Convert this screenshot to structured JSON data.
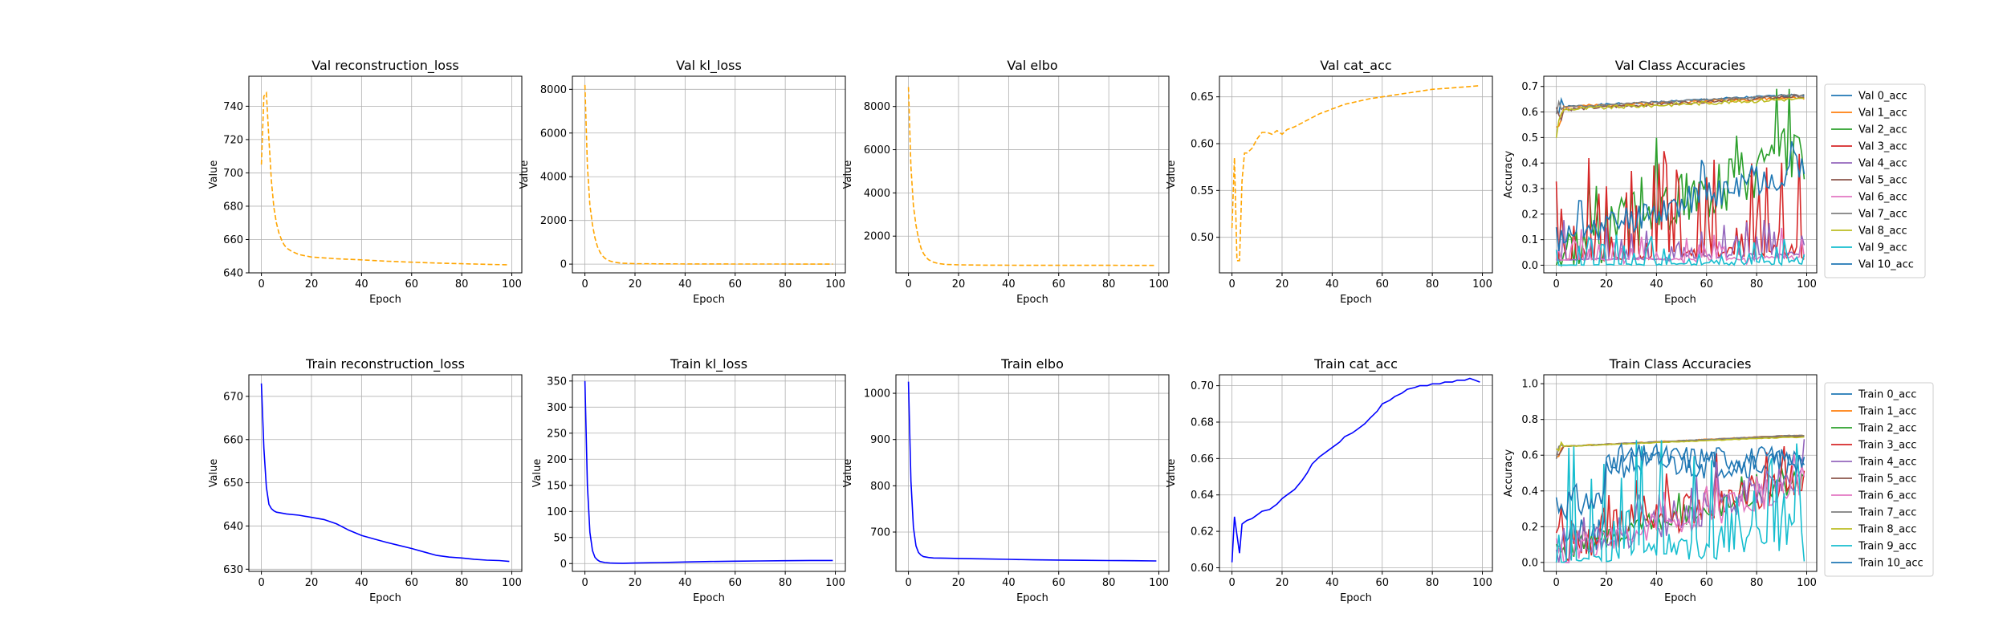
{
  "chart_data": [
    {
      "type": "line",
      "title": "Val reconstruction_loss",
      "xlabel": "Epoch",
      "ylabel": "Value",
      "xlim": [
        -5,
        104
      ],
      "ylim": [
        640,
        758
      ],
      "xticks": [
        0,
        20,
        40,
        60,
        80,
        100
      ],
      "yticks": [
        640,
        660,
        680,
        700,
        720,
        740
      ],
      "grid": true,
      "series": [
        {
          "color": "#ffa500",
          "dash": "dashed",
          "x": [
            0,
            1,
            2,
            3,
            4,
            5,
            6,
            7,
            8,
            9,
            10,
            12,
            15,
            20,
            30,
            40,
            50,
            60,
            70,
            80,
            90,
            99
          ],
          "y": [
            705,
            746,
            748,
            720,
            695,
            679,
            670,
            664,
            660,
            657,
            655,
            653,
            651,
            649.5,
            648.5,
            647.8,
            647,
            646.4,
            645.9,
            645.5,
            645.1,
            644.8
          ]
        }
      ]
    },
    {
      "type": "line",
      "title": "Val kl_loss",
      "xlabel": "Epoch",
      "ylabel": "Value",
      "xlim": [
        -5,
        104
      ],
      "ylim": [
        -400,
        8600
      ],
      "xticks": [
        0,
        20,
        40,
        60,
        80,
        100
      ],
      "yticks": [
        0,
        2000,
        4000,
        6000,
        8000
      ],
      "grid": true,
      "series": [
        {
          "color": "#ffa500",
          "dash": "dashed",
          "x": [
            0,
            1,
            2,
            3,
            4,
            5,
            6,
            7,
            8,
            10,
            12,
            15,
            20,
            30,
            40,
            60,
            80,
            99
          ],
          "y": [
            8200,
            4500,
            2700,
            1800,
            1200,
            800,
            550,
            380,
            260,
            140,
            80,
            40,
            20,
            10,
            6,
            4,
            3,
            2
          ]
        }
      ]
    },
    {
      "type": "line",
      "title": "Val elbo",
      "xlabel": "Epoch",
      "ylabel": "Value",
      "xlim": [
        -5,
        104
      ],
      "ylim": [
        300,
        9400
      ],
      "xticks": [
        0,
        20,
        40,
        60,
        80,
        100
      ],
      "yticks": [
        2000,
        4000,
        6000,
        8000
      ],
      "grid": true,
      "series": [
        {
          "color": "#ffa500",
          "dash": "dashed",
          "x": [
            0,
            1,
            2,
            3,
            4,
            5,
            6,
            7,
            8,
            10,
            12,
            15,
            20,
            30,
            40,
            60,
            80,
            99
          ],
          "y": [
            8900,
            5200,
            3400,
            2500,
            1900,
            1450,
            1200,
            1030,
            910,
            790,
            730,
            690,
            670,
            655,
            652,
            650,
            648,
            646
          ]
        }
      ]
    },
    {
      "type": "line",
      "title": "Val cat_acc",
      "xlabel": "Epoch",
      "ylabel": "Value",
      "xlim": [
        -5,
        104
      ],
      "ylim": [
        0.462,
        0.672
      ],
      "xticks": [
        0,
        20,
        40,
        60,
        80,
        100
      ],
      "yticks": [
        0.5,
        0.55,
        0.6,
        0.65
      ],
      "grid": true,
      "series": [
        {
          "color": "#ffa500",
          "dash": "dashed",
          "x": [
            0,
            1,
            2,
            3,
            4,
            5,
            6,
            8,
            10,
            12,
            14,
            16,
            18,
            20,
            22,
            25,
            30,
            35,
            40,
            45,
            50,
            55,
            60,
            65,
            70,
            75,
            80,
            85,
            90,
            95,
            99
          ],
          "y": [
            0.51,
            0.585,
            0.475,
            0.475,
            0.56,
            0.59,
            0.59,
            0.595,
            0.605,
            0.612,
            0.612,
            0.61,
            0.614,
            0.61,
            0.615,
            0.618,
            0.625,
            0.632,
            0.637,
            0.642,
            0.645,
            0.648,
            0.65,
            0.652,
            0.654,
            0.656,
            0.658,
            0.659,
            0.66,
            0.661,
            0.662
          ]
        }
      ]
    },
    {
      "type": "line",
      "title": "Val Class Accuracies",
      "xlabel": "Epoch",
      "ylabel": "Accuracy",
      "xlim": [
        -5,
        104
      ],
      "ylim": [
        -0.03,
        0.74
      ],
      "xticks": [
        0,
        20,
        40,
        60,
        80,
        100
      ],
      "yticks": [
        0,
        0.1,
        0.2,
        0.3,
        0.4,
        0.5,
        0.6,
        0.7
      ],
      "grid": true,
      "legend": "outside-right",
      "generated": true,
      "series": [
        {
          "name": "Val 0_acc",
          "color": "#1f77b4",
          "kind": "high",
          "base": 0.62,
          "start": 0.6,
          "end": 0.665,
          "amp": 0.01,
          "seed": 1
        },
        {
          "name": "Val 1_acc",
          "color": "#ff7f0e",
          "kind": "high",
          "base": 0.62,
          "start": 0.55,
          "end": 0.655,
          "amp": 0.012,
          "seed": 2
        },
        {
          "name": "Val 2_acc",
          "color": "#2ca02c",
          "kind": "mid",
          "base": 0.15,
          "start": 0.05,
          "end": 0.45,
          "amp": 0.12,
          "seed": 3
        },
        {
          "name": "Val 3_acc",
          "color": "#d62728",
          "kind": "spiky",
          "base": 0.03,
          "start": 0.02,
          "end": 0.1,
          "amp": 0.45,
          "seed": 4
        },
        {
          "name": "Val 4_acc",
          "color": "#9467bd",
          "kind": "spiky",
          "base": 0.03,
          "start": 0.02,
          "end": 0.06,
          "amp": 0.18,
          "seed": 5
        },
        {
          "name": "Val 5_acc",
          "color": "#8c564b",
          "kind": "high",
          "base": 0.61,
          "start": 0.6,
          "end": 0.66,
          "amp": 0.012,
          "seed": 6
        },
        {
          "name": "Val 6_acc",
          "color": "#e377c2",
          "kind": "spiky",
          "base": 0.02,
          "start": 0.02,
          "end": 0.04,
          "amp": 0.15,
          "seed": 7
        },
        {
          "name": "Val 7_acc",
          "color": "#7f7f7f",
          "kind": "high",
          "base": 0.62,
          "start": 0.6,
          "end": 0.665,
          "amp": 0.008,
          "seed": 8
        },
        {
          "name": "Val 8_acc",
          "color": "#bcbd22",
          "kind": "high",
          "base": 0.61,
          "start": 0.52,
          "end": 0.65,
          "amp": 0.015,
          "seed": 9
        },
        {
          "name": "Val 9_acc",
          "color": "#17becf",
          "kind": "spiky",
          "base": 0.01,
          "start": 0.0,
          "end": 0.02,
          "amp": 0.12,
          "seed": 10
        },
        {
          "name": "Val 10_acc",
          "color": "#1f77b4",
          "kind": "mid",
          "base": 0.2,
          "start": 0.1,
          "end": 0.38,
          "amp": 0.06,
          "seed": 11
        }
      ]
    },
    {
      "type": "line",
      "title": "Train reconstruction_loss",
      "xlabel": "Epoch",
      "ylabel": "Value",
      "xlim": [
        -5,
        104
      ],
      "ylim": [
        629.5,
        675
      ],
      "xticks": [
        0,
        20,
        40,
        60,
        80,
        100
      ],
      "yticks": [
        630,
        640,
        650,
        660,
        670
      ],
      "grid": true,
      "series": [
        {
          "color": "#0000ff",
          "dash": "solid",
          "x": [
            0,
            1,
            2,
            3,
            4,
            5,
            6,
            8,
            10,
            15,
            20,
            25,
            30,
            35,
            40,
            45,
            50,
            55,
            60,
            65,
            70,
            75,
            80,
            85,
            90,
            95,
            99
          ],
          "y": [
            673,
            658,
            649,
            645,
            644,
            643.5,
            643.2,
            643,
            642.8,
            642.5,
            642,
            641.5,
            640.5,
            639,
            637.8,
            637,
            636.2,
            635.5,
            634.8,
            634,
            633.2,
            632.8,
            632.6,
            632.3,
            632.1,
            632,
            631.8
          ]
        }
      ]
    },
    {
      "type": "line",
      "title": "Train kl_loss",
      "xlabel": "Epoch",
      "ylabel": "Value",
      "xlim": [
        -5,
        104
      ],
      "ylim": [
        -15,
        362
      ],
      "xticks": [
        0,
        20,
        40,
        60,
        80,
        100
      ],
      "yticks": [
        0,
        50,
        100,
        150,
        200,
        250,
        300,
        350
      ],
      "grid": true,
      "series": [
        {
          "color": "#0000ff",
          "dash": "solid",
          "x": [
            0,
            1,
            2,
            3,
            4,
            5,
            6,
            8,
            10,
            15,
            20,
            30,
            40,
            50,
            60,
            70,
            80,
            90,
            99
          ],
          "y": [
            350,
            150,
            60,
            25,
            12,
            7,
            4,
            2,
            1,
            0.5,
            1,
            2,
            3,
            4,
            4.5,
            5,
            5.5,
            6,
            6
          ]
        }
      ]
    },
    {
      "type": "line",
      "title": "Train elbo",
      "xlabel": "Epoch",
      "ylabel": "Value",
      "xlim": [
        -5,
        104
      ],
      "ylim": [
        615,
        1040
      ],
      "xticks": [
        0,
        20,
        40,
        60,
        80,
        100
      ],
      "yticks": [
        700,
        800,
        900,
        1000
      ],
      "grid": true,
      "series": [
        {
          "color": "#0000ff",
          "dash": "solid",
          "x": [
            0,
            1,
            2,
            3,
            4,
            5,
            6,
            8,
            10,
            15,
            20,
            30,
            40,
            50,
            60,
            70,
            80,
            90,
            99
          ],
          "y": [
            1025,
            810,
            710,
            670,
            656,
            650,
            647,
            645,
            644,
            643.5,
            643,
            642,
            641,
            640,
            639.5,
            639,
            638.5,
            638,
            637.5
          ]
        }
      ]
    },
    {
      "type": "line",
      "title": "Train cat_acc",
      "xlabel": "Epoch",
      "ylabel": "Value",
      "xlim": [
        -5,
        104
      ],
      "ylim": [
        0.598,
        0.706
      ],
      "xticks": [
        0,
        20,
        40,
        60,
        80,
        100
      ],
      "yticks": [
        0.6,
        0.62,
        0.64,
        0.66,
        0.68,
        0.7
      ],
      "grid": true,
      "series": [
        {
          "color": "#0000ff",
          "dash": "solid",
          "x": [
            0,
            1,
            2,
            3,
            4,
            5,
            6,
            8,
            10,
            12,
            15,
            18,
            20,
            22,
            25,
            28,
            30,
            32,
            35,
            38,
            40,
            43,
            45,
            48,
            50,
            53,
            55,
            58,
            60,
            63,
            65,
            68,
            70,
            73,
            75,
            78,
            80,
            83,
            85,
            88,
            90,
            93,
            95,
            97,
            99
          ],
          "y": [
            0.603,
            0.628,
            0.618,
            0.608,
            0.624,
            0.625,
            0.626,
            0.627,
            0.629,
            0.631,
            0.632,
            0.635,
            0.638,
            0.64,
            0.643,
            0.648,
            0.652,
            0.657,
            0.661,
            0.664,
            0.666,
            0.669,
            0.672,
            0.674,
            0.676,
            0.679,
            0.682,
            0.686,
            0.69,
            0.692,
            0.694,
            0.696,
            0.698,
            0.699,
            0.7,
            0.7,
            0.701,
            0.701,
            0.702,
            0.702,
            0.703,
            0.703,
            0.704,
            0.703,
            0.702
          ]
        }
      ]
    },
    {
      "type": "line",
      "title": "Train Class Accuracies",
      "xlabel": "Epoch",
      "ylabel": "Accuracy",
      "xlim": [
        -5,
        104
      ],
      "ylim": [
        -0.05,
        1.05
      ],
      "xticks": [
        0,
        20,
        40,
        60,
        80,
        100
      ],
      "yticks": [
        0,
        0.2,
        0.4,
        0.6,
        0.8,
        1.0
      ],
      "grid": true,
      "legend": "outside-right",
      "generated": true,
      "series": [
        {
          "name": "Train 0_acc",
          "color": "#1f77b4",
          "kind": "bump",
          "base": 0.55,
          "start": 0.1,
          "end": 0.55,
          "amp": 0.08,
          "seed": 21
        },
        {
          "name": "Train 1_acc",
          "color": "#ff7f0e",
          "kind": "high",
          "base": 0.65,
          "start": 0.62,
          "end": 0.71,
          "amp": 0.005,
          "seed": 22
        },
        {
          "name": "Train 2_acc",
          "color": "#2ca02c",
          "kind": "mid",
          "base": 0.3,
          "start": 0.05,
          "end": 0.45,
          "amp": 0.06,
          "seed": 23
        },
        {
          "name": "Train 3_acc",
          "color": "#d62728",
          "kind": "mid",
          "base": 0.3,
          "start": 0.1,
          "end": 0.45,
          "amp": 0.12,
          "seed": 24
        },
        {
          "name": "Train 4_acc",
          "color": "#9467bd",
          "kind": "mid",
          "base": 0.3,
          "start": 0.05,
          "end": 0.48,
          "amp": 0.1,
          "seed": 25
        },
        {
          "name": "Train 5_acc",
          "color": "#8c564b",
          "kind": "high",
          "base": 0.65,
          "start": 0.61,
          "end": 0.705,
          "amp": 0.005,
          "seed": 26
        },
        {
          "name": "Train 6_acc",
          "color": "#e377c2",
          "kind": "mid",
          "base": 0.28,
          "start": 0.05,
          "end": 0.42,
          "amp": 0.08,
          "seed": 27
        },
        {
          "name": "Train 7_acc",
          "color": "#7f7f7f",
          "kind": "high",
          "base": 0.65,
          "start": 0.61,
          "end": 0.71,
          "amp": 0.004,
          "seed": 28
        },
        {
          "name": "Train 8_acc",
          "color": "#bcbd22",
          "kind": "high",
          "base": 0.65,
          "start": 0.6,
          "end": 0.7,
          "amp": 0.004,
          "seed": 29
        },
        {
          "name": "Train 9_acc",
          "color": "#17becf",
          "kind": "spiky",
          "base": 0.15,
          "start": 0.0,
          "end": 0.3,
          "amp": 0.75,
          "seed": 30
        },
        {
          "name": "Train 10_acc",
          "color": "#1f77b4",
          "kind": "bump",
          "base": 0.6,
          "start": 0.3,
          "end": 0.58,
          "amp": 0.07,
          "seed": 31
        }
      ]
    }
  ]
}
